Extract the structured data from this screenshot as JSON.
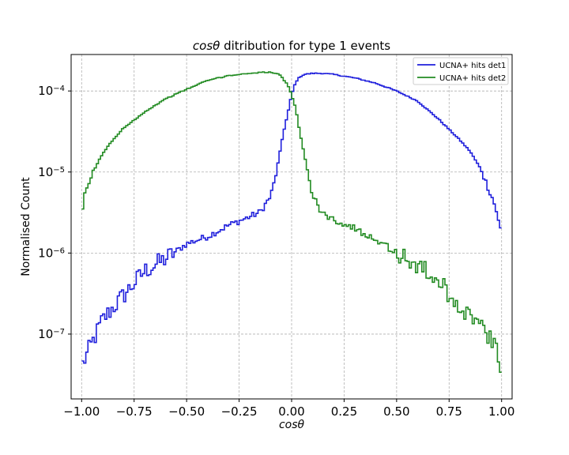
{
  "chart_data": {
    "type": "line",
    "style": "step-histogram",
    "title_math": "cosθ",
    "title_rest": " ditribution for type 1 events",
    "xlabel": "cosθ",
    "ylabel": "Normalised Count",
    "xlim": [
      -1.05,
      1.05
    ],
    "ylim_log10": [
      -7.8,
      -3.55
    ],
    "yscale": "log",
    "grid": true,
    "legend_position": "top-right",
    "x_ticks": [
      -1.0,
      -0.75,
      -0.5,
      -0.25,
      0.0,
      0.25,
      0.5,
      0.75,
      1.0
    ],
    "x_tick_labels": [
      "−1.00",
      "−0.75",
      "−0.50",
      "−0.25",
      "0.00",
      "0.25",
      "0.50",
      "0.75",
      "1.00"
    ],
    "y_ticks": [
      1e-07,
      1e-06,
      1e-05,
      0.0001
    ],
    "y_tick_labels": [
      {
        "base": "10",
        "exp": "−7"
      },
      {
        "base": "10",
        "exp": "−6"
      },
      {
        "base": "10",
        "exp": "−5"
      },
      {
        "base": "10",
        "exp": "−4"
      }
    ],
    "series": [
      {
        "name": "UCNA+ hits det1",
        "color": "#1f1fdc",
        "x": [
          -1.0,
          -0.9,
          -0.8,
          -0.7,
          -0.6,
          -0.5,
          -0.4,
          -0.3,
          -0.2,
          -0.15,
          -0.1,
          -0.08,
          -0.06,
          -0.04,
          -0.02,
          0.0,
          0.02,
          0.04,
          0.06,
          0.1,
          0.15,
          0.2,
          0.3,
          0.4,
          0.5,
          0.6,
          0.7,
          0.8,
          0.85,
          0.9,
          0.93,
          0.96,
          0.98,
          0.99,
          1.0
        ],
        "y": [
          4e-08,
          1.5e-07,
          3e-07,
          6e-07,
          8.5e-07,
          1.3e-06,
          1.6e-06,
          2.2e-06,
          2.8e-06,
          3.2e-06,
          5e-06,
          8e-06,
          1.5e-05,
          3e-05,
          5e-05,
          9e-05,
          0.00013,
          0.00015,
          0.00016,
          0.000165,
          0.000165,
          0.00016,
          0.000145,
          0.000125,
          0.0001,
          7.5e-05,
          4.5e-05,
          2.5e-05,
          1.8e-05,
          1.1e-05,
          7e-06,
          4.5e-06,
          3e-06,
          2e-06,
          2e-06
        ]
      },
      {
        "name": "UCNA+ hits det2",
        "color": "#228b22",
        "x": [
          -1.0,
          -0.99,
          -0.98,
          -0.96,
          -0.93,
          -0.9,
          -0.85,
          -0.8,
          -0.7,
          -0.6,
          -0.5,
          -0.4,
          -0.3,
          -0.2,
          -0.15,
          -0.1,
          -0.06,
          -0.04,
          -0.02,
          0.0,
          0.02,
          0.04,
          0.06,
          0.08,
          0.1,
          0.15,
          0.2,
          0.3,
          0.4,
          0.5,
          0.6,
          0.7,
          0.8,
          0.9,
          0.95,
          0.98,
          1.0
        ],
        "y": [
          2.3e-06,
          4.5e-06,
          6e-06,
          8e-06,
          1.2e-05,
          1.7e-05,
          2.5e-05,
          3.5e-05,
          5.5e-05,
          8e-05,
          0.000105,
          0.000135,
          0.000155,
          0.000165,
          0.00017,
          0.00017,
          0.00016,
          0.00014,
          0.00012,
          9e-05,
          6e-05,
          3e-05,
          1.7e-05,
          9e-06,
          5e-06,
          3e-06,
          2.6e-06,
          2e-06,
          1.5e-06,
          1e-06,
          7e-07,
          4.5e-07,
          2.2e-07,
          1.3e-07,
          8e-08,
          6e-08,
          2.5e-08
        ]
      }
    ]
  }
}
